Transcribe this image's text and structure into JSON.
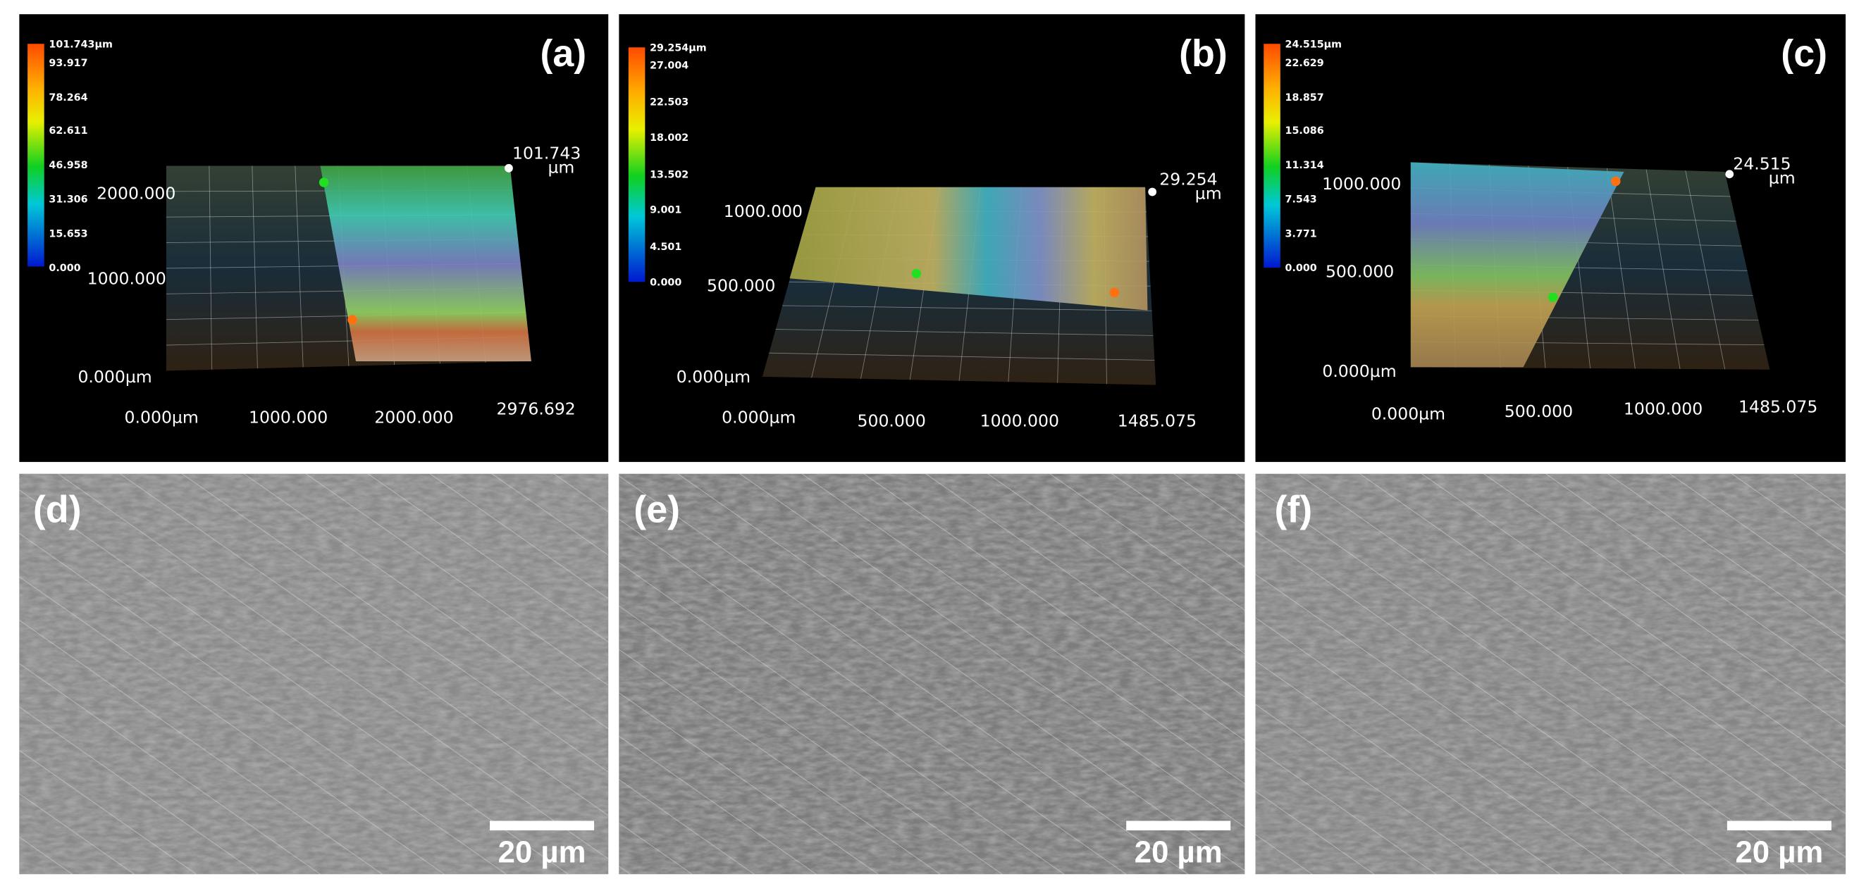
{
  "panels": [
    {
      "label": "(a)",
      "colorbar": [
        "101.743µm",
        "93.917",
        "78.264",
        "62.611",
        "46.958",
        "31.306",
        "15.653",
        "0.000"
      ],
      "max_label": "101.743",
      "max_unit": "µm",
      "y_axis": [
        "2000.000",
        "1000.000",
        "0.000µm"
      ],
      "x_axis": [
        "0.000µm",
        "1000.000",
        "2000.000",
        "2976.692"
      ]
    },
    {
      "label": "(b)",
      "colorbar": [
        "29.254µm",
        "27.004",
        "22.503",
        "18.002",
        "13.502",
        "9.001",
        "4.501",
        "0.000"
      ],
      "max_label": "29.254",
      "max_unit": "µm",
      "y_axis": [
        "1000.000",
        "500.000",
        "0.000µm"
      ],
      "x_axis": [
        "0.000µm",
        "500.000",
        "1000.000",
        "1485.075"
      ]
    },
    {
      "label": "(c)",
      "colorbar": [
        "24.515µm",
        "22.629",
        "18.857",
        "15.086",
        "11.314",
        "7.543",
        "3.771",
        "0.000"
      ],
      "max_label": "24.515",
      "max_unit": "µm",
      "y_axis": [
        "1000.000",
        "500.000",
        "0.000µm"
      ],
      "x_axis": [
        "0.000µm",
        "500.000",
        "1000.000",
        "1485.075"
      ]
    }
  ],
  "sem": [
    {
      "label": "(d)",
      "scale_bar": "20 µm"
    },
    {
      "label": "(e)",
      "scale_bar": "20 µm"
    },
    {
      "label": "(f)",
      "scale_bar": "20 µm"
    }
  ]
}
